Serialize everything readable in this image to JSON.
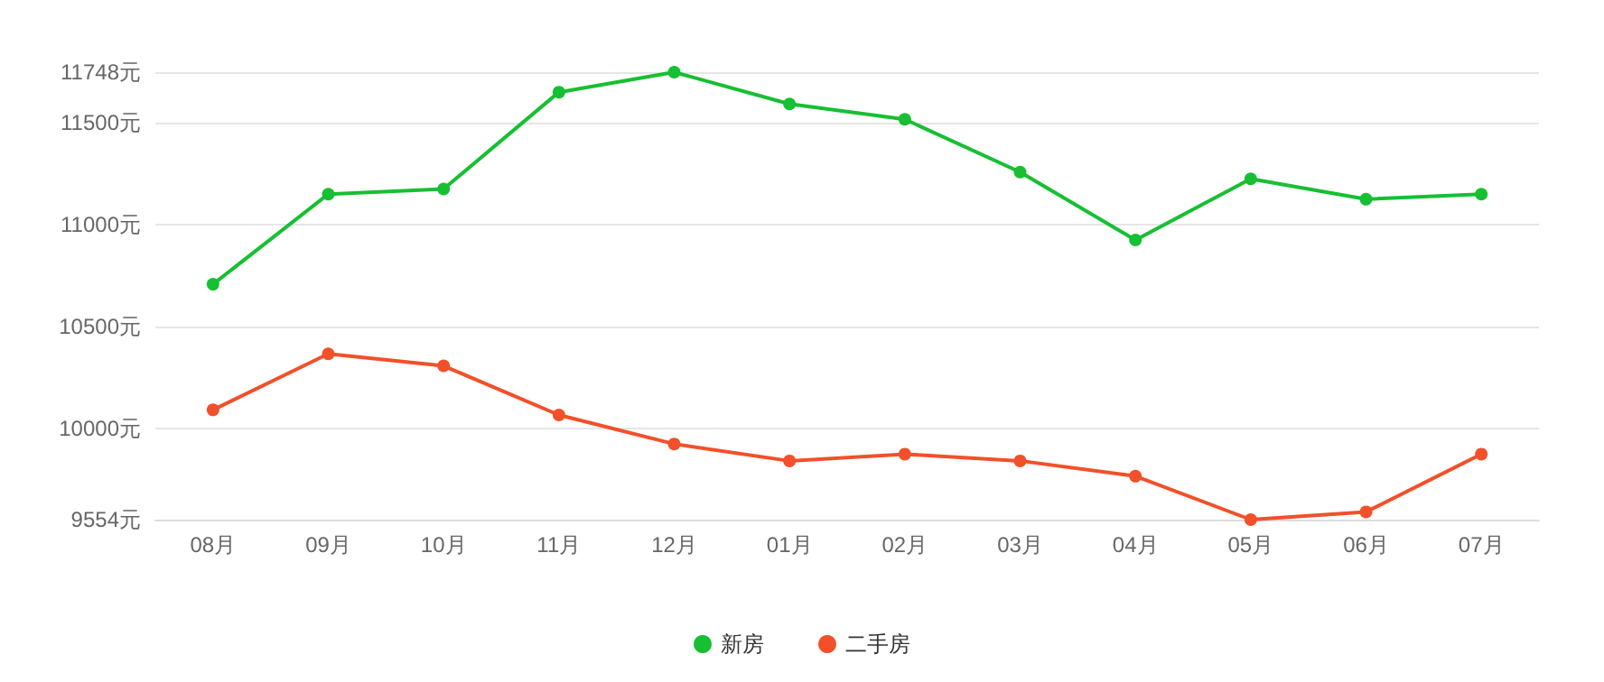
{
  "chart_data": {
    "type": "line",
    "categories": [
      "08月",
      "09月",
      "10月",
      "11月",
      "12月",
      "01月",
      "02月",
      "03月",
      "04月",
      "05月",
      "06月",
      "07月"
    ],
    "series": [
      {
        "name": "新房",
        "color": "#17bf32",
        "values": [
          10708,
          11150,
          11175,
          11650,
          11748,
          11592,
          11517,
          11258,
          10925,
          11225,
          11125,
          11150
        ]
      },
      {
        "name": "二手房",
        "color": "#f2502a",
        "values": [
          10092,
          10367,
          10308,
          10067,
          9925,
          9842,
          9875,
          9842,
          9767,
          9554,
          9592,
          9875
        ]
      }
    ],
    "ylim": [
      9554,
      11748
    ],
    "yticks": [
      {
        "value": 9554,
        "label": "9554元"
      },
      {
        "value": 10000,
        "label": "10000元"
      },
      {
        "value": 10500,
        "label": "10500元"
      },
      {
        "value": 11000,
        "label": "11000元"
      },
      {
        "value": 11500,
        "label": "11500元"
      },
      {
        "value": 11748,
        "label": "11748元"
      }
    ],
    "grid": "y",
    "legend": "bottom",
    "marker": "circle",
    "line_style": "solid"
  }
}
